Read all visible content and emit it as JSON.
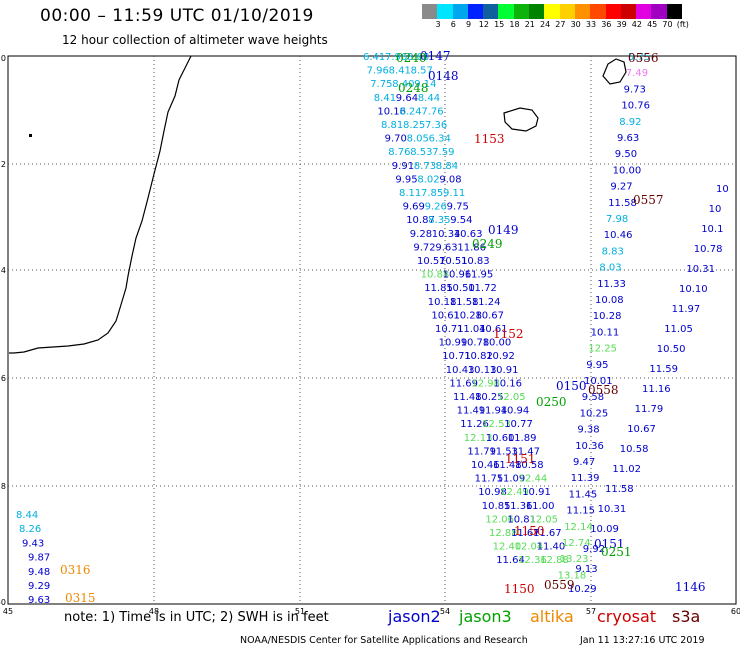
{
  "header": {
    "title": "00:00 – 11:59 UTC 01/10/2019",
    "subtitle": "12 hour collection of altimeter wave heights"
  },
  "legend": {
    "labels": [
      "3",
      "6",
      "9",
      "12",
      "15",
      "18",
      "21",
      "24",
      "27",
      "30",
      "33",
      "36",
      "39",
      "42",
      "45",
      "70",
      "(ft)"
    ],
    "colors": [
      "#8a8a8a",
      "#00e5ff",
      "#00a6ee",
      "#0022ff",
      "#1060a0",
      "#00ff33",
      "#0bb30b",
      "#008400",
      "#ffff00",
      "#ffd000",
      "#ff9000",
      "#ff4800",
      "#ff0000",
      "#cc0000",
      "#e000e0",
      "#a000c0",
      "#000000"
    ]
  },
  "axes": {
    "x_ticks": [
      "45",
      "48",
      "51",
      "54",
      "57",
      "60"
    ],
    "y_ticks": [
      "-20",
      "-22",
      "-24",
      "-26",
      "-28",
      "-30"
    ]
  },
  "colors": {
    "jason2": "#0000cc",
    "jason3": "#00a000",
    "altika": "#ee8800",
    "cryosat": "#cc0000",
    "s3a": "#660000",
    "lightgreen": "#55dd55",
    "cyan": "#00b0e0",
    "pink": "#ee77ee"
  },
  "tracks": {
    "left": [
      {
        "t": "6.41",
        "c": "cyan"
      },
      {
        "t": "7.96",
        "c": "cyan"
      },
      {
        "t": "8.68",
        "c": "cyan"
      },
      {
        "t": "7.96",
        "c": "cyan"
      },
      {
        "t": "8.41",
        "c": "cyan"
      },
      {
        "t": "8.57",
        "c": "cyan"
      },
      {
        "t": "7.75",
        "c": "cyan"
      },
      {
        "t": "8.40",
        "c": "cyan"
      },
      {
        "t": "9.14",
        "c": "cyan"
      },
      {
        "t": "8.41",
        "c": "cyan"
      },
      {
        "t": "9.64",
        "c": "jason2"
      },
      {
        "t": "8.44",
        "c": "cyan"
      },
      {
        "t": "10.16",
        "c": "jason2"
      },
      {
        "t": "8.24",
        "c": "cyan"
      },
      {
        "t": "7.76",
        "c": "cyan"
      },
      {
        "t": "8.81",
        "c": "cyan"
      },
      {
        "t": "8.25",
        "c": "cyan"
      },
      {
        "t": "7.36",
        "c": "cyan"
      },
      {
        "t": "9.70",
        "c": "jason2"
      },
      {
        "t": "8.05",
        "c": "cyan"
      },
      {
        "t": "6.34",
        "c": "cyan"
      },
      {
        "t": "8.76",
        "c": "cyan"
      },
      {
        "t": "8.53",
        "c": "cyan"
      },
      {
        "t": "7.59",
        "c": "cyan"
      },
      {
        "t": "9.91",
        "c": "jason2"
      },
      {
        "t": "8.73",
        "c": "cyan"
      },
      {
        "t": "8.84",
        "c": "cyan"
      },
      {
        "t": "9.95",
        "c": "jason2"
      },
      {
        "t": "8.02",
        "c": "cyan"
      },
      {
        "t": "9.08",
        "c": "jason2"
      },
      {
        "t": "8.11",
        "c": "cyan"
      },
      {
        "t": "7.85",
        "c": "cyan"
      },
      {
        "t": "9.11",
        "c": "cyan"
      },
      {
        "t": "9.69",
        "c": "jason2"
      },
      {
        "t": "9.26",
        "c": "cyan"
      },
      {
        "t": "9.75",
        "c": "jason2"
      },
      {
        "t": "10.87",
        "c": "jason2"
      },
      {
        "t": "8.35",
        "c": "cyan"
      },
      {
        "t": "9.54",
        "c": "jason2"
      },
      {
        "t": "9.28",
        "c": "jason2"
      },
      {
        "t": "10.34",
        "c": "jason2"
      },
      {
        "t": "10.63",
        "c": "jason2"
      },
      {
        "t": "9.72",
        "c": "jason2"
      },
      {
        "t": "9.63",
        "c": "jason2"
      },
      {
        "t": "11.86",
        "c": "jason2"
      },
      {
        "t": "10.57",
        "c": "jason2"
      },
      {
        "t": "10.51",
        "c": "jason2"
      },
      {
        "t": "10.83",
        "c": "jason2"
      },
      {
        "t": "10.88",
        "c": "lightgreen"
      },
      {
        "t": "10.96",
        "c": "jason2"
      },
      {
        "t": "11.95",
        "c": "jason2"
      },
      {
        "t": "11.85",
        "c": "jason2"
      },
      {
        "t": "10.50",
        "c": "jason2"
      },
      {
        "t": "11.72",
        "c": "jason2"
      },
      {
        "t": "10.18",
        "c": "jason2"
      },
      {
        "t": "11.58",
        "c": "jason2"
      },
      {
        "t": "11.24",
        "c": "jason2"
      },
      {
        "t": "10.61",
        "c": "jason2"
      },
      {
        "t": "10.28",
        "c": "jason2"
      },
      {
        "t": "10.67",
        "c": "jason2"
      },
      {
        "t": "10.71",
        "c": "jason2"
      },
      {
        "t": "11.04",
        "c": "jason2"
      },
      {
        "t": "10.61",
        "c": "jason2"
      },
      {
        "t": "10.99",
        "c": "jason2"
      },
      {
        "t": "10.78",
        "c": "jason2"
      },
      {
        "t": "10.00",
        "c": "jason2"
      },
      {
        "t": "10.71",
        "c": "jason2"
      },
      {
        "t": "10.82",
        "c": "jason2"
      },
      {
        "t": "10.92",
        "c": "jason2"
      },
      {
        "t": "10.43",
        "c": "jason2"
      },
      {
        "t": "10.13",
        "c": "jason2"
      },
      {
        "t": "10.91",
        "c": "jason2"
      },
      {
        "t": "11.69",
        "c": "jason2"
      },
      {
        "t": "12.98",
        "c": "lightgreen"
      },
      {
        "t": "10.16",
        "c": "jason2"
      },
      {
        "t": "11.48",
        "c": "jason2"
      },
      {
        "t": "10.25",
        "c": "jason2"
      },
      {
        "t": "12.05",
        "c": "lightgreen"
      },
      {
        "t": "11.49",
        "c": "jason2"
      },
      {
        "t": "11.94",
        "c": "jason2"
      },
      {
        "t": "10.94",
        "c": "jason2"
      },
      {
        "t": "11.26",
        "c": "jason2"
      },
      {
        "t": "12.53",
        "c": "lightgreen"
      },
      {
        "t": "10.77",
        "c": "jason2"
      },
      {
        "t": "12.13",
        "c": "lightgreen"
      },
      {
        "t": "10.60",
        "c": "jason2"
      },
      {
        "t": "11.89",
        "c": "jason2"
      },
      {
        "t": "11.79",
        "c": "jason2"
      },
      {
        "t": "11.53",
        "c": "jason2"
      },
      {
        "t": "11.47",
        "c": "jason2"
      },
      {
        "t": "10.46",
        "c": "jason2"
      },
      {
        "t": "11.48",
        "c": "jason2"
      },
      {
        "t": "10.58",
        "c": "jason2"
      },
      {
        "t": "11.75",
        "c": "jason2"
      },
      {
        "t": "11.09",
        "c": "jason2"
      },
      {
        "t": "12.44",
        "c": "lightgreen"
      },
      {
        "t": "10.98",
        "c": "jason2"
      },
      {
        "t": "12.49",
        "c": "lightgreen"
      },
      {
        "t": "10.91",
        "c": "jason2"
      },
      {
        "t": "10.85",
        "c": "jason2"
      },
      {
        "t": "11.36",
        "c": "jason2"
      },
      {
        "t": "11.00",
        "c": "jason2"
      },
      {
        "t": "12.06",
        "c": "lightgreen"
      },
      {
        "t": "10.81",
        "c": "jason2"
      },
      {
        "t": "12.05",
        "c": "lightgreen"
      },
      {
        "t": "12.88",
        "c": "lightgreen"
      },
      {
        "t": "11.67",
        "c": "jason2"
      },
      {
        "t": "11.67",
        "c": "jason2"
      },
      {
        "t": "12.40",
        "c": "lightgreen"
      },
      {
        "t": "12.04",
        "c": "lightgreen"
      },
      {
        "t": "11.40",
        "c": "jason2"
      },
      {
        "t": "11.64",
        "c": "jason2"
      },
      {
        "t": "12.36",
        "c": "lightgreen"
      },
      {
        "t": "12.88",
        "c": "lightgreen"
      }
    ],
    "right": [
      {
        "t": "5.75",
        "c": "cyan"
      },
      {
        "t": "7.49",
        "c": "pink"
      },
      {
        "t": "9.73",
        "c": "jason2"
      },
      {
        "t": "10.76",
        "c": "jason2"
      },
      {
        "t": "8.92",
        "c": "cyan"
      },
      {
        "t": "9.63",
        "c": "jason2"
      },
      {
        "t": "9.50",
        "c": "jason2"
      },
      {
        "t": "10.00",
        "c": "jason2"
      },
      {
        "t": "9.27",
        "c": "jason2"
      },
      {
        "t": "11.58",
        "c": "jason2"
      },
      {
        "t": "7.98",
        "c": "cyan"
      },
      {
        "t": "10.46",
        "c": "jason2"
      },
      {
        "t": "8.83",
        "c": "cyan"
      },
      {
        "t": "8.03",
        "c": "cyan"
      },
      {
        "t": "11.33",
        "c": "jason2"
      },
      {
        "t": "10.08",
        "c": "jason2"
      },
      {
        "t": "10.28",
        "c": "jason2"
      },
      {
        "t": "10.11",
        "c": "jason2"
      },
      {
        "t": "12.25",
        "c": "lightgreen"
      },
      {
        "t": "9.95",
        "c": "jason2"
      },
      {
        "t": "10.01",
        "c": "jason2"
      },
      {
        "t": "9.58",
        "c": "jason2"
      },
      {
        "t": "10.25",
        "c": "jason2"
      },
      {
        "t": "9.38",
        "c": "jason2"
      },
      {
        "t": "10.36",
        "c": "jason2"
      },
      {
        "t": "9.47",
        "c": "jason2"
      },
      {
        "t": "11.39",
        "c": "jason2"
      },
      {
        "t": "11.45",
        "c": "jason2"
      },
      {
        "t": "11.15",
        "c": "jason2"
      },
      {
        "t": "12.14",
        "c": "lightgreen"
      },
      {
        "t": "12.74",
        "c": "lightgreen"
      },
      {
        "t": "13.23",
        "c": "lightgreen"
      },
      {
        "t": "13.18",
        "c": "lightgreen"
      },
      {
        "t": "10.29",
        "c": "jason2"
      },
      {
        "t": "9.13",
        "c": "jason2"
      },
      {
        "t": "9.92",
        "c": "jason2"
      },
      {
        "t": "10.09",
        "c": "jason2"
      },
      {
        "t": "10.31",
        "c": "jason2"
      },
      {
        "t": "11.58",
        "c": "jason2"
      },
      {
        "t": "11.02",
        "c": "jason2"
      },
      {
        "t": "10.58",
        "c": "jason2"
      },
      {
        "t": "10.67",
        "c": "jason2"
      },
      {
        "t": "11.79",
        "c": "jason2"
      },
      {
        "t": "11.16",
        "c": "jason2"
      },
      {
        "t": "11.59",
        "c": "jason2"
      },
      {
        "t": "10.50",
        "c": "jason2"
      },
      {
        "t": "11.05",
        "c": "jason2"
      },
      {
        "t": "11.97",
        "c": "jason2"
      },
      {
        "t": "10.10",
        "c": "jason2"
      },
      {
        "t": "10.31",
        "c": "jason2"
      },
      {
        "t": "10.78",
        "c": "jason2"
      },
      {
        "t": "10.1",
        "c": "jason2"
      },
      {
        "t": "10",
        "c": "jason2"
      },
      {
        "t": "10",
        "c": "jason2"
      }
    ],
    "west": [
      {
        "t": "8.44",
        "c": "cyan"
      },
      {
        "t": "8.26",
        "c": "cyan"
      },
      {
        "t": "9.43",
        "c": "jason2"
      },
      {
        "t": "9.87",
        "c": "jason2"
      },
      {
        "t": "9.48",
        "c": "jason2"
      },
      {
        "t": "9.29",
        "c": "jason2"
      },
      {
        "t": "9.63",
        "c": "jason2"
      }
    ]
  },
  "time_labels": [
    {
      "t": "0147",
      "c": "jason2"
    },
    {
      "t": "0240",
      "c": "jason3"
    },
    {
      "t": "0148",
      "c": "jason2"
    },
    {
      "t": "0248",
      "c": "jason3"
    },
    {
      "t": "1153",
      "c": "cryosat"
    },
    {
      "t": "0149",
      "c": "jason2"
    },
    {
      "t": "0249",
      "c": "jason3"
    },
    {
      "t": "1152",
      "c": "cryosat"
    },
    {
      "t": "0150",
      "c": "jason2"
    },
    {
      "t": "0250",
      "c": "jason3"
    },
    {
      "t": "1151",
      "c": "cryosat"
    },
    {
      "t": "1150",
      "c": "cryosat"
    },
    {
      "t": "1150",
      "c": "cryosat"
    },
    {
      "t": "0559",
      "c": "s3a"
    },
    {
      "t": "0556",
      "c": "s3a"
    },
    {
      "t": "0557",
      "c": "s3a"
    },
    {
      "t": "0558",
      "c": "s3a"
    },
    {
      "t": "0151",
      "c": "jason2"
    },
    {
      "t": "0251",
      "c": "jason3"
    },
    {
      "t": "1146",
      "c": "jason2"
    },
    {
      "t": "0316",
      "c": "altika"
    },
    {
      "t": "0315",
      "c": "altika"
    }
  ],
  "footer": {
    "note": "note: 1) Time is in UTC; 2) SWH is in feet",
    "sat_jason2": "jason2",
    "sat_jason3": "jason3",
    "sat_altika": "altika",
    "sat_cryosat": "cryosat",
    "sat_s3a": "s3a",
    "credit": "NOAA/NESDIS Center for Satellite Applications and Research",
    "timestamp": "Jan 11 13:27:16 UTC 2019"
  }
}
